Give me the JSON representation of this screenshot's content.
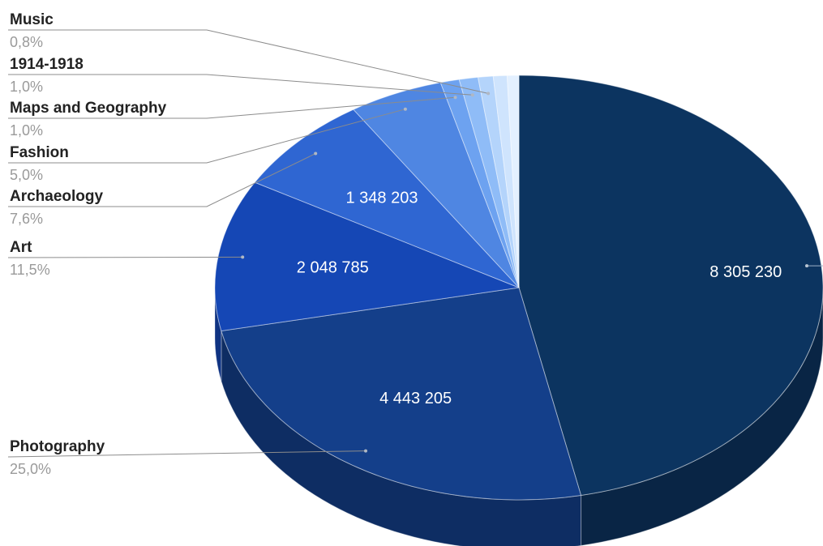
{
  "chart_data": {
    "type": "pie",
    "style": "3d",
    "legend_placement": "left",
    "slices": [
      {
        "name": "",
        "value": 8305230,
        "percent": "",
        "value_label": "8 305 230",
        "color": "#0c3460"
      },
      {
        "name": "Photography",
        "value": 4443205,
        "percent": "25,0%",
        "value_label": "4 443 205",
        "color": "#143f8a"
      },
      {
        "name": "Art",
        "value": 2048785,
        "percent": "11,5%",
        "value_label": "2 048 785",
        "color": "#1547b5"
      },
      {
        "name": "Archaeology",
        "value": 1348203,
        "percent": "7,6%",
        "value_label": "1 348 203",
        "color": "#2f66d2"
      },
      {
        "name": "Fashion",
        "value": 890000,
        "percent": "5,0%",
        "value_label": "",
        "color": "#4f86e2"
      },
      {
        "name": "Maps and Geography",
        "value": 178000,
        "percent": "1,0%",
        "value_label": "",
        "color": "#6da2f0"
      },
      {
        "name": "1914-1918",
        "value": 178000,
        "percent": "1,0%",
        "value_label": "",
        "color": "#8fbcf7"
      },
      {
        "name": "Music",
        "value": 142000,
        "percent": "0,8%",
        "value_label": "",
        "color": "#b4d4fb"
      },
      {
        "name": "",
        "value": 130000,
        "percent": "",
        "value_label": "",
        "color": "#cfe4fd"
      },
      {
        "name": "",
        "value": 110000,
        "percent": "",
        "value_label": "",
        "color": "#e3f0ff"
      }
    ]
  }
}
